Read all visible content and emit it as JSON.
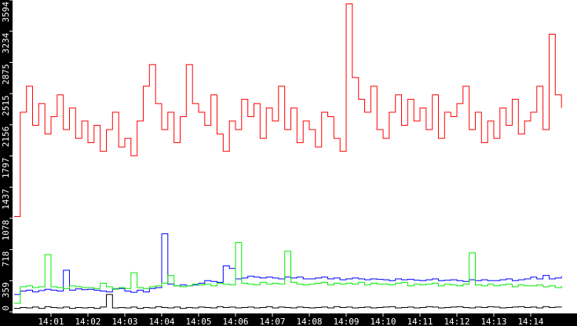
{
  "chart_data": {
    "type": "line",
    "title": "",
    "xlabel": "",
    "ylabel": "",
    "ylim": [
      0,
      3594
    ],
    "xlim": [
      "14:00:00",
      "14:15:00"
    ],
    "grid": false,
    "yticks": [
      0,
      359,
      718,
      1078,
      1437,
      1797,
      2156,
      2515,
      2875,
      3234,
      3594
    ],
    "xticks": [
      "14:01",
      "14:02",
      "14:03",
      "14:04",
      "14:05",
      "14:06",
      "14:07",
      "14:08",
      "14:09",
      "14:10",
      "14:11",
      "14:12",
      "14:13",
      "14:14"
    ],
    "x_start": "14:00:00",
    "x_step_seconds": 10,
    "series": [
      {
        "color": "#ff0000",
        "values": [
          1100,
          2300,
          2600,
          2150,
          2400,
          2050,
          2250,
          2500,
          2100,
          2350,
          2000,
          2200,
          1950,
          2150,
          1850,
          2100,
          2300,
          1900,
          2000,
          1800,
          2200,
          2600,
          2850,
          2400,
          2100,
          2300,
          1950,
          2250,
          2850,
          2400,
          2300,
          2150,
          2500,
          2050,
          1850,
          2200,
          2100,
          2450,
          2250,
          2400,
          2000,
          2350,
          2200,
          2600,
          2100,
          2350,
          1950,
          2200,
          2100,
          1900,
          2300,
          2250,
          2000,
          1850,
          3550,
          2700,
          2450,
          2300,
          2600,
          2100,
          2000,
          2300,
          2500,
          2150,
          2450,
          2200,
          2350,
          2100,
          2500,
          2000,
          2300,
          2250,
          2400,
          2600,
          2100,
          2300,
          1950,
          2200,
          2000,
          2350,
          2150,
          2450,
          2050,
          2200,
          2300,
          2600,
          2100,
          3200,
          2500,
          2350
        ]
      },
      {
        "color": "#0000ff",
        "values": [
          200,
          240,
          250,
          230,
          245,
          260,
          250,
          240,
          480,
          250,
          265,
          255,
          260,
          250,
          240,
          230,
          265,
          270,
          240,
          225,
          250,
          230,
          270,
          280,
          900,
          320,
          300,
          310,
          300,
          310,
          330,
          360,
          350,
          340,
          530,
          500,
          380,
          390,
          410,
          400,
          390,
          400,
          390,
          380,
          400,
          390,
          400,
          380,
          380,
          390,
          400,
          380,
          390,
          370,
          380,
          390,
          380,
          370,
          380,
          375,
          370,
          360,
          380,
          370,
          375,
          365,
          360,
          370,
          380,
          360,
          365,
          370,
          360,
          350,
          370,
          360,
          370,
          360,
          360,
          370,
          380,
          360,
          370,
          380,
          400,
          380,
          420,
          380,
          390,
          410
        ]
      },
      {
        "color": "#00ee00",
        "values": [
          100,
          290,
          300,
          280,
          290,
          660,
          290,
          280,
          270,
          300,
          290,
          280,
          280,
          270,
          330,
          290,
          260,
          280,
          270,
          450,
          280,
          270,
          290,
          300,
          330,
          420,
          300,
          290,
          300,
          320,
          310,
          320,
          300,
          330,
          320,
          310,
          800,
          330,
          320,
          310,
          340,
          320,
          330,
          320,
          700,
          340,
          320,
          310,
          320,
          330,
          340,
          310,
          330,
          320,
          330,
          320,
          340,
          310,
          330,
          320,
          320,
          310,
          330,
          340,
          300,
          320,
          310,
          320,
          330,
          300,
          320,
          310,
          300,
          320,
          680,
          310,
          300,
          320,
          300,
          310,
          320,
          290,
          310,
          300,
          300,
          310,
          290,
          300,
          280,
          300
        ]
      },
      {
        "color": "#000000",
        "values": [
          40,
          50,
          45,
          55,
          40,
          60,
          50,
          45,
          55,
          40,
          50,
          45,
          50,
          40,
          55,
          200,
          45,
          50,
          45,
          55,
          40,
          50,
          45,
          60,
          50,
          45,
          55,
          40,
          50,
          45,
          55,
          50,
          45,
          60,
          50,
          55,
          45,
          50,
          55,
          45,
          50,
          60,
          45,
          55,
          50,
          45,
          55,
          50,
          45,
          50,
          55,
          45,
          60,
          50,
          55,
          45,
          50,
          55,
          45,
          50,
          55,
          60,
          45,
          50,
          55,
          45,
          50,
          60,
          55,
          45,
          50,
          55,
          60,
          50,
          45,
          55,
          50,
          60,
          55,
          45,
          50,
          55,
          60,
          50,
          55,
          45,
          60,
          50,
          55,
          60
        ]
      }
    ]
  }
}
